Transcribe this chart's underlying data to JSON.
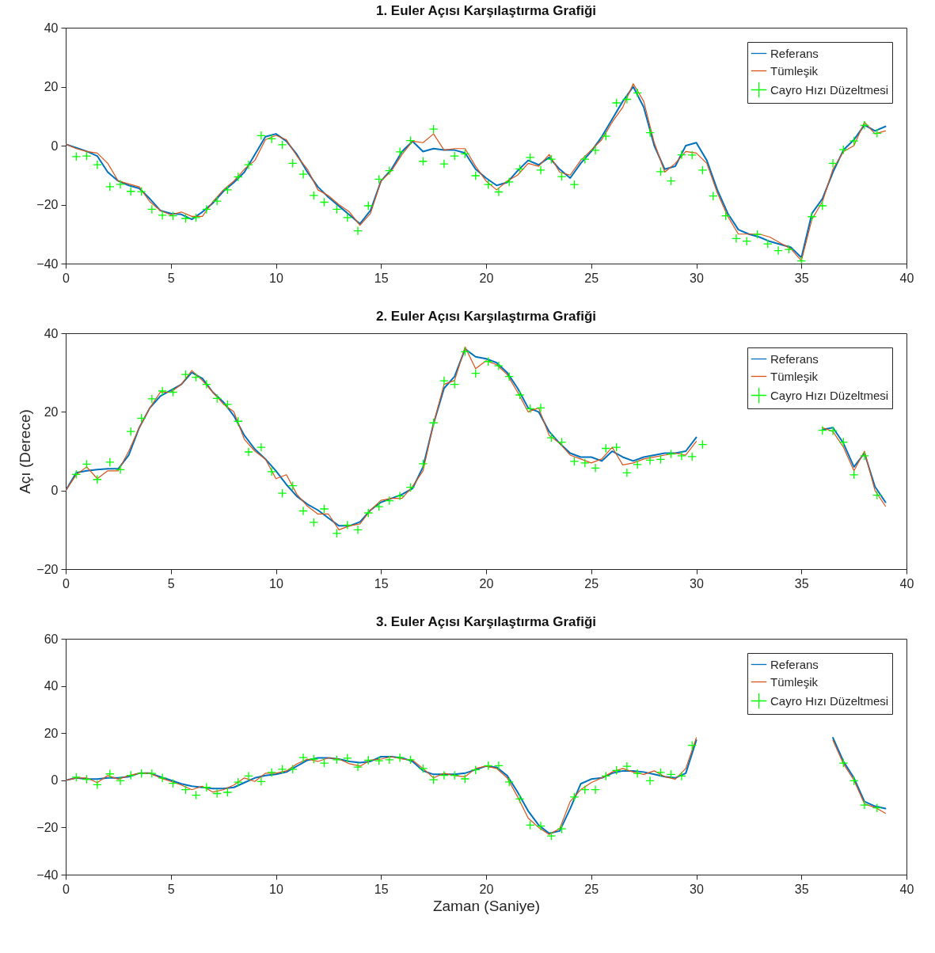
{
  "chart_data": [
    {
      "type": "line",
      "title": "1. Euler Açısı Karşılaştırma Grafiği",
      "xlim": [
        0,
        40
      ],
      "xticks": [
        0,
        5,
        10,
        15,
        20,
        25,
        30,
        35,
        40
      ],
      "ylim": [
        -40,
        40
      ],
      "yticks": [
        -40,
        -20,
        0,
        20,
        40
      ],
      "legend": "top right",
      "x": [
        0,
        0.5,
        1,
        1.5,
        2,
        2.5,
        3,
        3.5,
        4,
        4.5,
        5,
        5.5,
        6,
        6.5,
        7,
        7.5,
        8,
        8.5,
        9,
        9.5,
        10,
        10.5,
        11,
        11.5,
        12,
        12.5,
        13,
        13.5,
        14,
        14.5,
        15,
        15.5,
        16,
        16.5,
        17,
        17.5,
        18,
        18.5,
        19,
        19.5,
        20,
        20.5,
        21,
        21.5,
        22,
        22.5,
        23,
        23.5,
        24,
        24.5,
        25,
        25.5,
        26,
        26.5,
        27,
        27.5,
        28,
        28.5,
        29,
        29.5,
        30,
        30.5,
        31,
        31.5,
        32,
        32.5,
        33,
        33.5,
        34,
        34.5,
        35,
        35.5,
        36,
        36.5,
        37,
        37.5,
        38,
        38.5,
        39
      ],
      "series": [
        {
          "name": "Referans",
          "type": "line",
          "color": "#0072bd",
          "values": [
            0.5,
            -0.7,
            -1.9,
            -3.5,
            -9,
            -12,
            -13.5,
            -14.5,
            -18,
            -22,
            -23,
            -23.3,
            -25,
            -22.5,
            -19.5,
            -15.5,
            -12.5,
            -9,
            -3,
            3,
            4,
            1.5,
            -3,
            -9,
            -14,
            -17.5,
            -20.5,
            -23.5,
            -26.5,
            -22,
            -12,
            -8,
            -2,
            1.5,
            -2,
            -1,
            -1.5,
            -1.5,
            -2.5,
            -8,
            -11,
            -13.5,
            -12.5,
            -8.5,
            -5,
            -6.5,
            -4,
            -8,
            -11,
            -6,
            -2,
            3,
            9,
            15,
            20,
            13,
            0,
            -8,
            -7,
            0,
            1,
            -5,
            -15,
            -23,
            -28.5,
            -30,
            -31,
            -32.5,
            -33.5,
            -34.5,
            -38,
            -23,
            -18,
            -9,
            -1.5,
            2,
            7,
            5,
            6.5
          ]
        },
        {
          "name": "Tümleşik",
          "type": "line",
          "color": "#d95319",
          "values": [
            0.5,
            -1,
            -2,
            -2.5,
            -6,
            -12,
            -13,
            -14,
            -19,
            -22,
            -23.5,
            -22.5,
            -24,
            -24,
            -19,
            -15,
            -12,
            -8,
            -5,
            2,
            3.5,
            2,
            -3.5,
            -8,
            -15,
            -17,
            -20,
            -22.5,
            -27,
            -23,
            -12,
            -8.5,
            -3,
            1.5,
            1,
            4,
            -1.5,
            -1,
            -1,
            -7,
            -12,
            -15,
            -12,
            -10,
            -6,
            -7,
            -3,
            -9,
            -10,
            -5,
            -1.5,
            2,
            8,
            13,
            21,
            15,
            1,
            -9,
            -6,
            -2,
            -2.5,
            -6,
            -16,
            -24,
            -30,
            -30,
            -30,
            -31,
            -33,
            -35,
            -39,
            -25,
            -19,
            -8,
            -2,
            0,
            8,
            4,
            5
          ]
        },
        {
          "name": "Cayro Hızı Düzeltmesi",
          "type": "scatter",
          "marker": "cross",
          "color": "#00ff00",
          "x": [
            0.5,
            1.0,
            1.5,
            2.1,
            2.6,
            3.1,
            3.6,
            4.1,
            4.6,
            5.1,
            5.7,
            6.2,
            6.7,
            7.2,
            7.7,
            8.2,
            8.7,
            9.3,
            9.8,
            10.3,
            10.8,
            11.3,
            11.8,
            12.3,
            12.9,
            13.4,
            13.9,
            14.4,
            14.9,
            15.4,
            15.9,
            16.4,
            17.0,
            17.5,
            18.0,
            18.5,
            19.0,
            19.5,
            20.1,
            20.6,
            21.1,
            21.6,
            22.1,
            22.6,
            23.1,
            23.6,
            24.2,
            24.7,
            25.2,
            25.7,
            26.2,
            26.7,
            27.2,
            27.8,
            28.3,
            28.8,
            29.3,
            29.8,
            30.3,
            30.8,
            31.4,
            31.9,
            32.4,
            32.9,
            33.4,
            33.9,
            34.4,
            35.0,
            35.5,
            36.0,
            36.5,
            37.0,
            37.5,
            38.0,
            38.6
          ],
          "values": [
            -3.7,
            -3.5,
            -6.5,
            -13.9,
            -13.1,
            -15.5,
            -15.6,
            -21.6,
            -23.6,
            -23.8,
            -24.7,
            -24.4,
            -21.6,
            -18.8,
            -15,
            -10.6,
            -6.5,
            3.4,
            2.3,
            0.3,
            -6,
            -9.7,
            -16.9,
            -19.2,
            -21.6,
            -24.4,
            -28.9,
            -20.4,
            -11.4,
            -8.5,
            -2.1,
            1.7,
            -5.3,
            5.6,
            -6.2,
            -3.5,
            -2.8,
            -10.2,
            -13.2,
            -15.7,
            -12.3,
            -7.9,
            -4,
            -8.3,
            -4.6,
            -10.5,
            -13.2,
            -4.6,
            -1.6,
            3.2,
            14.5,
            15.7,
            17.9,
            4.4,
            -8.8,
            -12,
            -3.1,
            -3.2,
            -8.3,
            -17.1,
            -23.8,
            -31.5,
            -32.4,
            -30.1,
            -33.3,
            -35.6,
            -35.2,
            -39.1,
            -24.1,
            -20.4,
            -6,
            -1.4,
            1.6,
            6.9,
            4.2
          ]
        }
      ]
    },
    {
      "type": "line",
      "title": "2. Euler Açısı Karşılaştırma Grafiği",
      "ylabel": "Açı (Derece)",
      "xlim": [
        0,
        40
      ],
      "xticks": [
        0,
        5,
        10,
        15,
        20,
        25,
        30,
        35,
        40
      ],
      "ylim": [
        -20,
        40
      ],
      "yticks": [
        -20,
        0,
        20,
        40
      ],
      "legend": "top right",
      "x": [
        0,
        0.5,
        1,
        1.5,
        2,
        2.5,
        3,
        3.5,
        4,
        4.5,
        5,
        5.5,
        6,
        6.5,
        7,
        7.5,
        8,
        8.5,
        9,
        9.5,
        10,
        10.5,
        11,
        11.5,
        12,
        12.5,
        13,
        13.5,
        14,
        14.5,
        15,
        15.5,
        16,
        16.5,
        17,
        17.5,
        18,
        18.5,
        19,
        19.5,
        20,
        20.5,
        21,
        21.5,
        22,
        22.5,
        23,
        23.5,
        24,
        24.5,
        25,
        25.5,
        26,
        26.5,
        27,
        27.5,
        28,
        28.5,
        29,
        29.5,
        30,
        30.5,
        31,
        31.5,
        32,
        32.5,
        33,
        33.5,
        34,
        34.5,
        35,
        35.5,
        36,
        36.5,
        37,
        37.5,
        38,
        38.5,
        39
      ],
      "series": [
        {
          "name": "Referans",
          "type": "line",
          "color": "#0072bd",
          "values": [
            0,
            4.5,
            5,
            5.3,
            5.5,
            5.5,
            9,
            16,
            21,
            24,
            25.5,
            27,
            30,
            28.5,
            25,
            22.5,
            19,
            14,
            10.5,
            8,
            5,
            1.5,
            -1.5,
            -3.5,
            -5,
            -7,
            -9,
            -9,
            -8,
            -5,
            -3,
            -2,
            -1,
            0.5,
            6,
            17,
            26,
            29,
            36,
            34,
            33.5,
            32.5,
            30,
            26,
            21,
            20,
            15,
            12,
            9.5,
            8.5,
            8.5,
            7.5,
            10,
            8.5,
            7.5,
            8.5,
            9,
            9.5,
            9.5,
            10,
            13.5,
            null,
            null,
            null,
            null,
            null,
            null,
            null,
            null,
            null,
            null,
            null,
            15.5,
            16,
            12,
            6,
            9.5,
            1,
            -3
          ]
        },
        {
          "name": "Tümleşik",
          "type": "line",
          "color": "#d95319",
          "values": [
            0,
            4,
            6,
            3,
            5,
            5,
            10,
            16,
            21,
            25,
            25,
            27,
            30.5,
            28,
            25,
            22,
            20,
            13,
            10,
            8,
            3,
            4,
            -1,
            -4,
            -6,
            -6,
            -10,
            -9,
            -8.5,
            -5,
            -2.5,
            -2,
            -2,
            1,
            5,
            17,
            27,
            28,
            36.5,
            31,
            33,
            32,
            29.5,
            25,
            20,
            21,
            14,
            12,
            9,
            8,
            7,
            8,
            11,
            6.5,
            7,
            8,
            8.5,
            9,
            9.5,
            9,
            12.5,
            null,
            null,
            null,
            null,
            null,
            null,
            null,
            null,
            null,
            null,
            null,
            16,
            15,
            11,
            5,
            10,
            0,
            -4
          ]
        },
        {
          "name": "Cayro Hızı Düzeltmesi",
          "type": "scatter",
          "marker": "cross",
          "color": "#00ff00",
          "x": [
            0.5,
            1.0,
            1.5,
            2.1,
            2.6,
            3.1,
            3.6,
            4.1,
            4.6,
            5.1,
            5.7,
            6.2,
            6.7,
            7.2,
            7.7,
            8.2,
            8.7,
            9.3,
            9.8,
            10.3,
            10.8,
            11.3,
            11.8,
            12.3,
            12.9,
            13.4,
            13.9,
            14.4,
            14.9,
            15.4,
            15.9,
            16.4,
            17.0,
            17.5,
            18.0,
            18.5,
            19.0,
            19.5,
            20.1,
            20.6,
            21.1,
            21.6,
            22.1,
            22.6,
            23.1,
            23.6,
            24.2,
            24.7,
            25.2,
            25.7,
            26.2,
            26.7,
            27.2,
            27.8,
            28.3,
            28.8,
            29.3,
            29.8,
            30.3,
            30.8,
            31.4,
            31.9,
            32.4,
            32.9,
            33.4,
            33.9,
            34.4,
            35.0,
            35.5,
            36.0,
            36.5,
            37.0,
            37.5,
            38.0,
            38.6
          ],
          "values": [
            4.1,
            6.7,
            2.8,
            7.2,
            5.3,
            15,
            18.4,
            23.3,
            25.3,
            25,
            29.5,
            28.8,
            27,
            23.4,
            21.9,
            17.6,
            9.8,
            11,
            4.8,
            -0.7,
            1.2,
            -5.2,
            -8.1,
            -4.7,
            -10.9,
            -8.8,
            -10,
            -5.7,
            -4.1,
            -2.6,
            -1.4,
            0.8,
            6.8,
            17.2,
            27.9,
            27,
            35.3,
            29.8,
            32.8,
            31.7,
            29,
            24.3,
            20.8,
            21,
            13.4,
            12.3,
            7.4,
            7,
            5.7,
            10.7,
            11,
            4.5,
            6.6,
            7.7,
            7.9,
            9.3,
            8.8,
            8.6,
            11.7,
            null,
            null,
            null,
            null,
            null,
            null,
            null,
            null,
            null,
            null,
            15.3,
            15.2,
            12.3,
            4,
            8.8,
            -1.2
          ]
        }
      ]
    },
    {
      "type": "line",
      "title": "3. Euler Açısı Karşılaştırma Grafiği",
      "xlabel": "Zaman (Saniye)",
      "xlim": [
        0,
        40
      ],
      "xticks": [
        0,
        5,
        10,
        15,
        20,
        25,
        30,
        35,
        40
      ],
      "ylim": [
        -40,
        60
      ],
      "yticks": [
        -40,
        -20,
        0,
        20,
        40,
        60
      ],
      "legend": "top right",
      "x": [
        0,
        0.5,
        1,
        1.5,
        2,
        2.5,
        3,
        3.5,
        4,
        4.5,
        5,
        5.5,
        6,
        6.5,
        7,
        7.5,
        8,
        8.5,
        9,
        9.5,
        10,
        10.5,
        11,
        11.5,
        12,
        12.5,
        13,
        13.5,
        14,
        14.5,
        15,
        15.5,
        16,
        16.5,
        17,
        17.5,
        18,
        18.5,
        19,
        19.5,
        20,
        20.5,
        21,
        21.5,
        22,
        22.5,
        23,
        23.5,
        24,
        24.5,
        25,
        25.5,
        26,
        26.5,
        27,
        27.5,
        28,
        28.5,
        29,
        29.5,
        30,
        30.5,
        31,
        31.5,
        32,
        32.5,
        33,
        33.5,
        34,
        34.5,
        35,
        35.5,
        36,
        36.5,
        37,
        37.5,
        38,
        38.5,
        39
      ],
      "series": [
        {
          "name": "Referans",
          "type": "line",
          "color": "#0072bd",
          "values": [
            0,
            1,
            0.5,
            0.5,
            1,
            1,
            1.5,
            3,
            3,
            1.5,
            0,
            -1.5,
            -2.5,
            -3,
            -3.5,
            -3.5,
            -3,
            -1,
            1,
            2,
            2.5,
            3.5,
            6,
            8.5,
            9.5,
            9.5,
            9,
            8,
            7.5,
            8,
            10,
            10,
            9.5,
            8,
            4,
            2.5,
            2.5,
            2.5,
            3,
            4.5,
            6,
            5.5,
            2,
            -5,
            -13,
            -19,
            -22.5,
            -21.5,
            -12,
            -1.5,
            0.5,
            1,
            3,
            4,
            4,
            3.5,
            2.5,
            1.5,
            1,
            3,
            17,
            null,
            null,
            null,
            null,
            null,
            null,
            null,
            null,
            null,
            null,
            null,
            null,
            18,
            8,
            1,
            -9,
            -11,
            -12
          ]
        },
        {
          "name": "Tümleşik",
          "type": "line",
          "color": "#d95319",
          "values": [
            0,
            1,
            1,
            -1,
            2,
            0.5,
            2,
            3,
            3,
            1,
            -0.5,
            -2,
            -4,
            -2.5,
            -5,
            -4,
            -2,
            1,
            -0.5,
            3,
            3,
            4,
            7,
            9,
            8,
            9.5,
            9,
            7,
            6,
            8.5,
            9,
            10,
            9,
            8.5,
            5,
            1,
            3,
            2,
            1.5,
            5,
            6,
            5,
            1,
            -7,
            -16,
            -20,
            -23,
            -20.5,
            -9,
            -4,
            -1,
            1,
            3.5,
            5,
            3.5,
            2.5,
            4,
            1.5,
            0.5,
            5,
            18,
            null,
            null,
            null,
            null,
            null,
            null,
            null,
            null,
            null,
            null,
            null,
            null,
            17,
            7,
            0,
            -10,
            -11.5,
            -14
          ]
        },
        {
          "name": "Cayro Hızı Düzeltmesi",
          "type": "scatter",
          "marker": "cross",
          "color": "#00ff00",
          "x": [
            0.5,
            1.0,
            1.5,
            2.1,
            2.6,
            3.1,
            3.6,
            4.1,
            4.6,
            5.1,
            5.7,
            6.2,
            6.7,
            7.2,
            7.7,
            8.2,
            8.7,
            9.3,
            9.8,
            10.3,
            10.8,
            11.3,
            11.8,
            12.3,
            12.9,
            13.4,
            13.9,
            14.4,
            14.9,
            15.4,
            15.9,
            16.4,
            17.0,
            17.5,
            18.0,
            18.5,
            19.0,
            19.5,
            20.1,
            20.6,
            21.1,
            21.6,
            22.1,
            22.6,
            23.1,
            23.6,
            24.2,
            24.7,
            25.2,
            25.7,
            26.2,
            26.7,
            27.2,
            27.8,
            28.3,
            28.8,
            29.3,
            29.8,
            30.3,
            30.8,
            31.4,
            31.9,
            32.4,
            32.9,
            33.4,
            33.9,
            34.4,
            35.0,
            35.5,
            36.0,
            36.5,
            37.0,
            37.5,
            38.0,
            38.6
          ],
          "values": [
            1.3,
            0.4,
            -1.9,
            2.7,
            -0.2,
            2.1,
            2.9,
            2.9,
            1,
            -1.3,
            -4,
            -6.3,
            -3,
            -5.6,
            -5.1,
            -0.8,
            1.8,
            -0.5,
            3.3,
            4.7,
            4.7,
            9.6,
            9,
            7.3,
            8.7,
            9.4,
            5.6,
            8.5,
            8.3,
            8.7,
            9.6,
            8.7,
            5,
            0.2,
            2.1,
            2.1,
            0.6,
            4.4,
            6.2,
            6.2,
            -0.7,
            -7.9,
            -19,
            -19.4,
            -23.6,
            -20.6,
            -7.1,
            -4,
            -4,
            1.8,
            4.2,
            5.9,
            2.9,
            -0.2,
            3.3,
            2.5,
            1.8,
            14.8,
            null,
            null,
            null,
            null,
            null,
            null,
            null,
            null,
            null,
            null,
            null,
            null,
            null,
            7.3,
            -0.2,
            -10.5,
            -11.7
          ]
        }
      ]
    }
  ]
}
